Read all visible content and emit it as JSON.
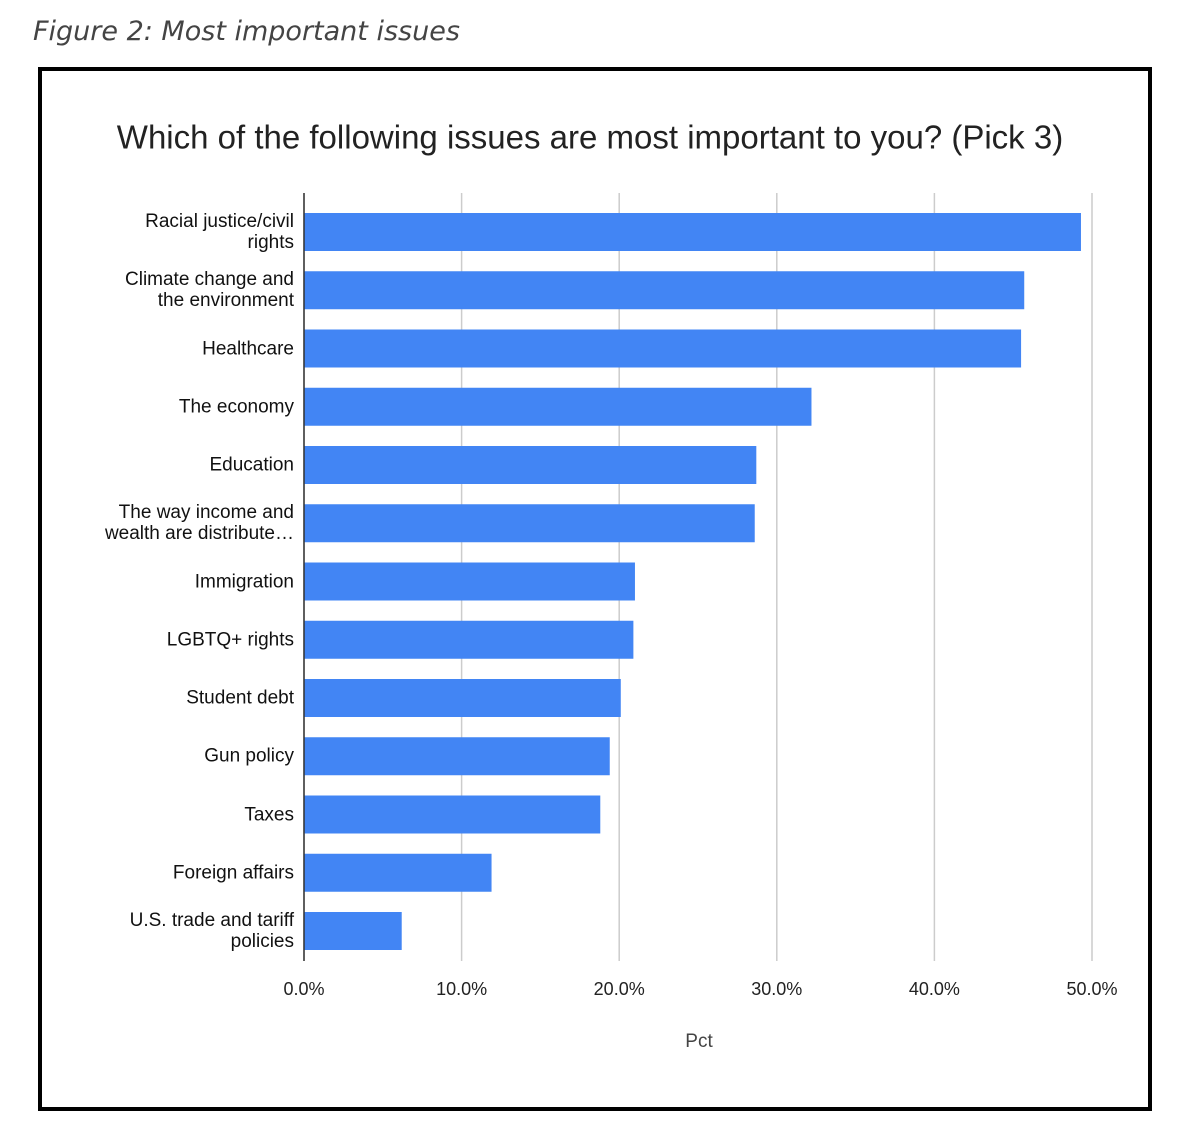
{
  "caption": "Figure 2: Most important issues",
  "chart_data": {
    "type": "barh",
    "title": "Which of the following issues are most important to you? (Pick 3)",
    "x_label": "Pct",
    "categories": [
      "Racial justice/civil rights",
      "Climate change and the environment",
      "Healthcare",
      "The economy",
      "Education",
      "The way income and wealth are distribute…",
      "Immigration",
      "LGBTQ+ rights",
      "Student debt",
      "Gun policy",
      "Taxes",
      "Foreign affairs",
      "U.S. trade and tariff policies"
    ],
    "values": [
      49.3,
      45.7,
      45.5,
      32.2,
      28.7,
      28.6,
      21.0,
      20.9,
      20.1,
      19.4,
      18.8,
      11.9,
      6.2
    ],
    "color": "#4285f4",
    "xlim": [
      0,
      50
    ],
    "xticks": [
      {
        "value": 0,
        "label": "0.0%"
      },
      {
        "value": 10,
        "label": "10.0%"
      },
      {
        "value": 20,
        "label": "20.0%"
      },
      {
        "value": 30,
        "label": "30.0%"
      },
      {
        "value": 40,
        "label": "40.0%"
      },
      {
        "value": 50,
        "label": "50.0%"
      }
    ],
    "grid": true
  }
}
